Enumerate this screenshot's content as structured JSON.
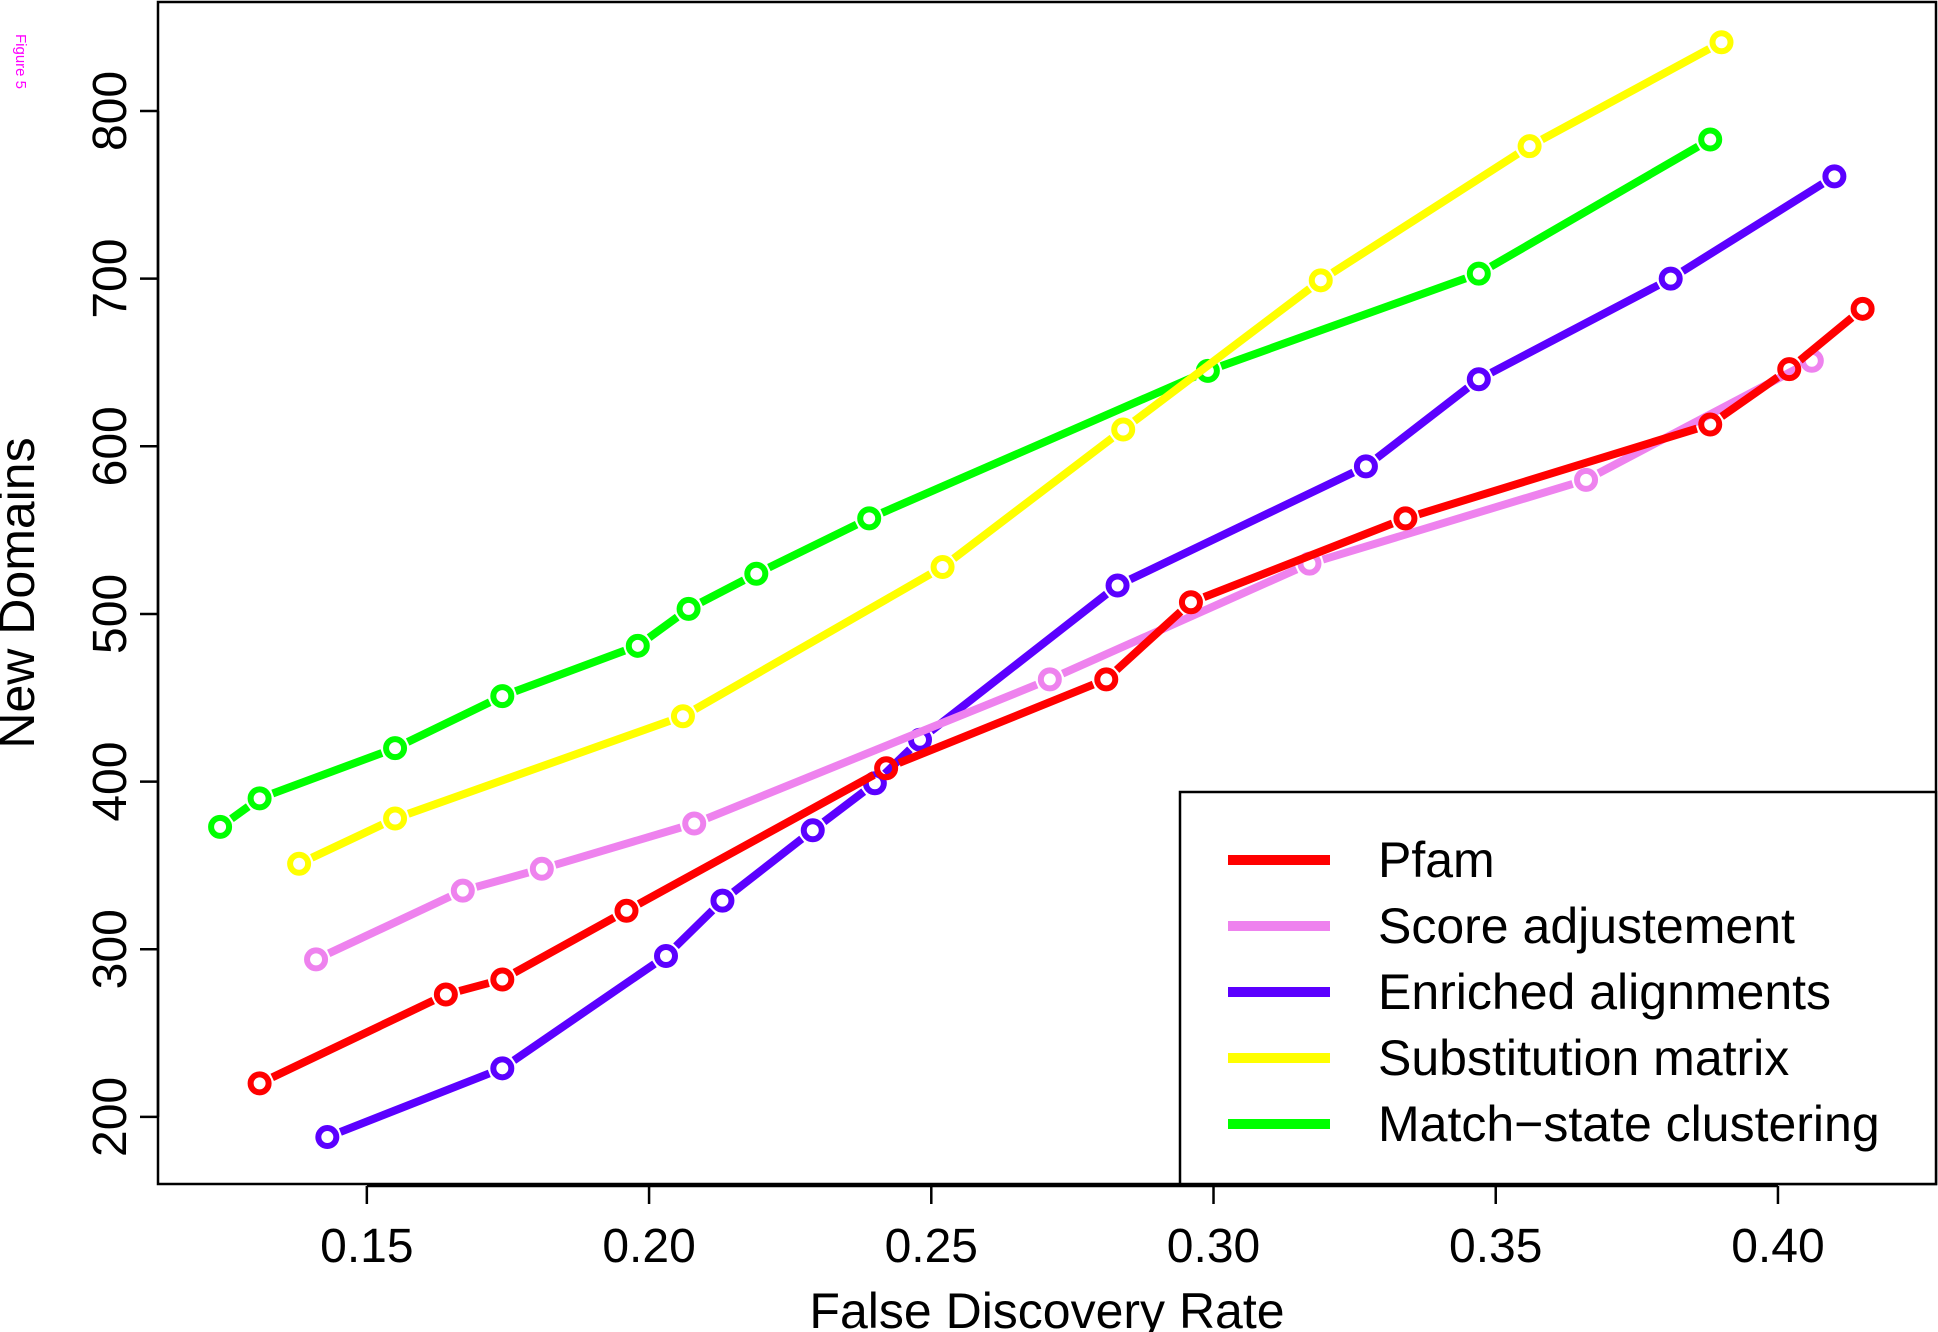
{
  "figure_tag": "Figure 5",
  "chart_data": {
    "type": "line",
    "title": "",
    "xlabel": "False Discovery Rate",
    "ylabel": "New Domains",
    "xlim": [
      0.113,
      0.428
    ],
    "ylim": [
      160,
      865
    ],
    "x_ticks": [
      0.15,
      0.2,
      0.25,
      0.3,
      0.35,
      0.4
    ],
    "x_tick_labels": [
      "0.15",
      "0.20",
      "0.25",
      "0.30",
      "0.35",
      "0.40"
    ],
    "y_ticks": [
      200,
      300,
      400,
      500,
      600,
      700,
      800
    ],
    "y_tick_labels": [
      "200",
      "300",
      "400",
      "500",
      "600",
      "700",
      "800"
    ],
    "grid": false,
    "legend_position": "bottom-right",
    "series": [
      {
        "name": "Pfam",
        "color": "#ff0000",
        "points": [
          [
            0.131,
            220
          ],
          [
            0.164,
            273
          ],
          [
            0.174,
            282
          ],
          [
            0.196,
            323
          ],
          [
            0.242,
            408
          ],
          [
            0.281,
            461
          ],
          [
            0.296,
            507
          ],
          [
            0.334,
            557
          ],
          [
            0.388,
            613
          ],
          [
            0.402,
            646
          ],
          [
            0.415,
            682
          ]
        ]
      },
      {
        "name": "Score adjustement",
        "color": "#ee82ee",
        "points": [
          [
            0.141,
            294
          ],
          [
            0.167,
            335
          ],
          [
            0.181,
            348
          ],
          [
            0.208,
            375
          ],
          [
            0.271,
            461
          ],
          [
            0.317,
            530
          ],
          [
            0.366,
            580
          ],
          [
            0.406,
            651
          ]
        ]
      },
      {
        "name": "Enriched alignments",
        "color": "#5b00ff",
        "points": [
          [
            0.143,
            188
          ],
          [
            0.174,
            229
          ],
          [
            0.203,
            296
          ],
          [
            0.213,
            329
          ],
          [
            0.229,
            371
          ],
          [
            0.24,
            399
          ],
          [
            0.248,
            425
          ],
          [
            0.283,
            517
          ],
          [
            0.327,
            588
          ],
          [
            0.347,
            640
          ],
          [
            0.381,
            700
          ],
          [
            0.41,
            761
          ]
        ]
      },
      {
        "name": "Substitution matrix",
        "color": "#ffff00",
        "points": [
          [
            0.138,
            351
          ],
          [
            0.155,
            378
          ],
          [
            0.206,
            439
          ],
          [
            0.252,
            528
          ],
          [
            0.284,
            610
          ],
          [
            0.319,
            699
          ],
          [
            0.356,
            779
          ],
          [
            0.39,
            841
          ]
        ]
      },
      {
        "name": "Match−state clustering",
        "color": "#00ff00",
        "points": [
          [
            0.124,
            373
          ],
          [
            0.131,
            390
          ],
          [
            0.155,
            420
          ],
          [
            0.174,
            451
          ],
          [
            0.198,
            481
          ],
          [
            0.207,
            503
          ],
          [
            0.219,
            524
          ],
          [
            0.239,
            557
          ],
          [
            0.299,
            645
          ],
          [
            0.347,
            703
          ],
          [
            0.388,
            783
          ]
        ]
      }
    ]
  }
}
